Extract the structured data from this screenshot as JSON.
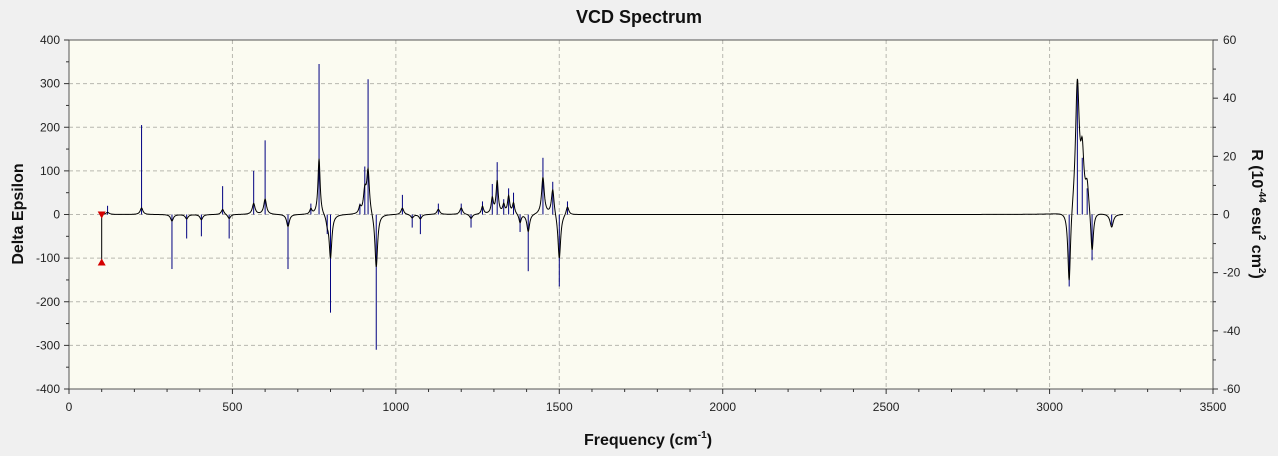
{
  "chart_data": {
    "type": "line",
    "title": "VCD Spectrum",
    "xlabel": "Frequency (cm",
    "xlabel_sup": "-1",
    "xlabel_end": ")",
    "ylabel_left": "Delta Epsilon",
    "ylabel_right": {
      "p1": "R (10",
      "s1": "-44",
      "p2": " esu",
      "s2": "2",
      "p3": " cm",
      "s3": "2",
      "p4": ")"
    },
    "xlim": [
      0,
      3500
    ],
    "ylim_left": [
      -400,
      400
    ],
    "ylim_right": [
      -60,
      60
    ],
    "x_ticks": [
      "0",
      "500",
      "1000",
      "1500",
      "2000",
      "2500",
      "3000",
      "3500"
    ],
    "y_ticks_left": [
      "400",
      "300",
      "200",
      "100",
      "0",
      "-100",
      "-200",
      "-300",
      "-400"
    ],
    "y_ticks_right": [
      "60",
      "40",
      "20",
      "0",
      "-20",
      "-40",
      "-60"
    ],
    "grid": true,
    "colors": {
      "plot_background": "#fbfbf1",
      "grid": "#b8b8b0",
      "spectrum": "#000000",
      "sticks": "#000080",
      "marker": "#d40000"
    },
    "series": [
      {
        "style": "curve",
        "peaks": [
          {
            "x": 118,
            "y": 5,
            "w": 6
          },
          {
            "x": 222,
            "y": 15,
            "w": 5
          },
          {
            "x": 315,
            "y": -15,
            "w": 5
          },
          {
            "x": 360,
            "y": -10,
            "w": 5
          },
          {
            "x": 405,
            "y": -12,
            "w": 5
          },
          {
            "x": 470,
            "y": 12,
            "w": 5
          },
          {
            "x": 490,
            "y": -10,
            "w": 5
          },
          {
            "x": 565,
            "y": 25,
            "w": 5
          },
          {
            "x": 600,
            "y": 35,
            "w": 5
          },
          {
            "x": 670,
            "y": -28,
            "w": 5
          },
          {
            "x": 740,
            "y": 12,
            "w": 4
          },
          {
            "x": 765,
            "y": 130,
            "w": 4
          },
          {
            "x": 790,
            "y": -15,
            "w": 4
          },
          {
            "x": 800,
            "y": -100,
            "w": 5
          },
          {
            "x": 890,
            "y": 15,
            "w": 4
          },
          {
            "x": 905,
            "y": 50,
            "w": 5
          },
          {
            "x": 915,
            "y": 100,
            "w": 5
          },
          {
            "x": 940,
            "y": -125,
            "w": 5
          },
          {
            "x": 1020,
            "y": 15,
            "w": 5
          },
          {
            "x": 1050,
            "y": -8,
            "w": 5
          },
          {
            "x": 1075,
            "y": -10,
            "w": 5
          },
          {
            "x": 1130,
            "y": 12,
            "w": 5
          },
          {
            "x": 1200,
            "y": 15,
            "w": 5
          },
          {
            "x": 1230,
            "y": -10,
            "w": 5
          },
          {
            "x": 1265,
            "y": 18,
            "w": 4
          },
          {
            "x": 1295,
            "y": 35,
            "w": 4
          },
          {
            "x": 1310,
            "y": 75,
            "w": 4
          },
          {
            "x": 1330,
            "y": 20,
            "w": 4
          },
          {
            "x": 1345,
            "y": 40,
            "w": 4
          },
          {
            "x": 1360,
            "y": 25,
            "w": 4
          },
          {
            "x": 1380,
            "y": -20,
            "w": 4
          },
          {
            "x": 1405,
            "y": -40,
            "w": 5
          },
          {
            "x": 1450,
            "y": 85,
            "w": 5
          },
          {
            "x": 1480,
            "y": 60,
            "w": 5
          },
          {
            "x": 1500,
            "y": -105,
            "w": 5
          },
          {
            "x": 1525,
            "y": 20,
            "w": 5
          },
          {
            "x": 3060,
            "y": -175,
            "w": 5
          },
          {
            "x": 3085,
            "y": 300,
            "w": 7
          },
          {
            "x": 3100,
            "y": 120,
            "w": 6
          },
          {
            "x": 3115,
            "y": 60,
            "w": 6
          },
          {
            "x": 3130,
            "y": -100,
            "w": 5
          },
          {
            "x": 3190,
            "y": -30,
            "w": 6
          }
        ]
      },
      {
        "style": "sticks",
        "points": [
          [
            118,
            20
          ],
          [
            222,
            205
          ],
          [
            315,
            -125
          ],
          [
            360,
            -55
          ],
          [
            405,
            -50
          ],
          [
            470,
            65
          ],
          [
            490,
            -55
          ],
          [
            565,
            100
          ],
          [
            600,
            170
          ],
          [
            670,
            -125
          ],
          [
            740,
            25
          ],
          [
            765,
            345
          ],
          [
            790,
            -45
          ],
          [
            800,
            -225
          ],
          [
            890,
            25
          ],
          [
            905,
            110
          ],
          [
            915,
            310
          ],
          [
            940,
            -310
          ],
          [
            1020,
            45
          ],
          [
            1050,
            -30
          ],
          [
            1075,
            -45
          ],
          [
            1130,
            25
          ],
          [
            1200,
            25
          ],
          [
            1230,
            -30
          ],
          [
            1265,
            30
          ],
          [
            1295,
            70
          ],
          [
            1310,
            120
          ],
          [
            1330,
            35
          ],
          [
            1345,
            60
          ],
          [
            1360,
            50
          ],
          [
            1380,
            -40
          ],
          [
            1405,
            -130
          ],
          [
            1450,
            130
          ],
          [
            1480,
            75
          ],
          [
            1500,
            -165
          ],
          [
            1525,
            30
          ],
          [
            3060,
            -165
          ],
          [
            3085,
            300
          ],
          [
            3100,
            130
          ],
          [
            3115,
            60
          ],
          [
            3130,
            -105
          ],
          [
            3190,
            -25
          ]
        ]
      }
    ],
    "marker": {
      "x": 100,
      "y_top": 0,
      "y_bottom": -110
    }
  }
}
